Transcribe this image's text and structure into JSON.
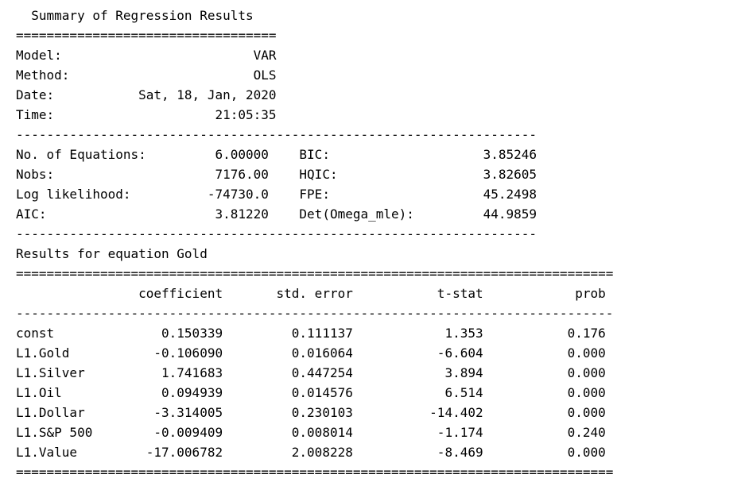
{
  "lines": [
    "  Summary of Regression Results   ",
    "==================================",
    "Model:                         VAR",
    "Method:                        OLS",
    "Date:           Sat, 18, Jan, 2020",
    "Time:                     21:05:35",
    "--------------------------------------------------------------------",
    "No. of Equations:         6.00000    BIC:                    3.85246",
    "Nobs:                     7176.00    HQIC:                   3.82605",
    "Log likelihood:          -74730.0    FPE:                    45.2498",
    "AIC:                      3.81220    Det(Omega_mle):         44.9859",
    "--------------------------------------------------------------------",
    "Results for equation Gold",
    "==============================================================================",
    "                coefficient       std. error           t-stat            prob",
    "------------------------------------------------------------------------------",
    "const              0.150339         0.111137            1.353           0.176",
    "L1.Gold           -0.106090         0.016064           -6.604           0.000",
    "L1.Silver          1.741683         0.447254            3.894           0.000",
    "L1.Oil             0.094939         0.014576            6.514           0.000",
    "L1.Dollar         -3.314005         0.230103          -14.402           0.000",
    "L1.S&P 500        -0.009409         0.008014           -1.174           0.240",
    "L1.Value         -17.006782         2.008228           -8.469           0.000",
    "=============================================================================="
  ]
}
